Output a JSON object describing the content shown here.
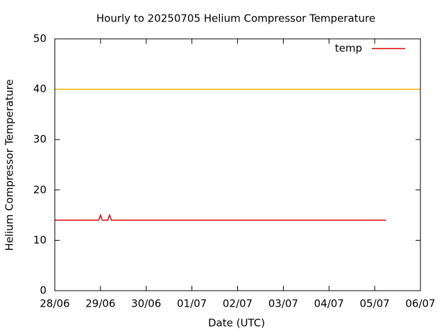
{
  "chart_data": {
    "type": "line",
    "title": "Hourly to 20250705 Helium Compressor Temperature",
    "xlabel": "Date (UTC)",
    "ylabel": "Helium Compressor Temperature",
    "x": [
      0,
      0.96,
      1.0,
      1.04,
      1.16,
      1.2,
      1.24,
      7.25
    ],
    "series": [
      {
        "name": "temp",
        "color": "#e00000",
        "values": [
          14,
          14,
          15,
          14,
          14,
          15,
          14,
          14
        ]
      }
    ],
    "hlines": [
      {
        "value": 40,
        "color": "#ffb000"
      }
    ],
    "xlim": [
      0,
      8
    ],
    "xticks": [
      {
        "value": 0,
        "label": "28/06"
      },
      {
        "value": 1,
        "label": "29/06"
      },
      {
        "value": 2,
        "label": "30/06"
      },
      {
        "value": 3,
        "label": "01/07"
      },
      {
        "value": 4,
        "label": "02/07"
      },
      {
        "value": 5,
        "label": "03/07"
      },
      {
        "value": 6,
        "label": "04/07"
      },
      {
        "value": 7,
        "label": "05/07"
      },
      {
        "value": 8,
        "label": "06/07"
      }
    ],
    "ylim": [
      0,
      50
    ],
    "yticks": [
      0,
      10,
      20,
      30,
      40,
      50
    ],
    "legend": "top-right"
  }
}
